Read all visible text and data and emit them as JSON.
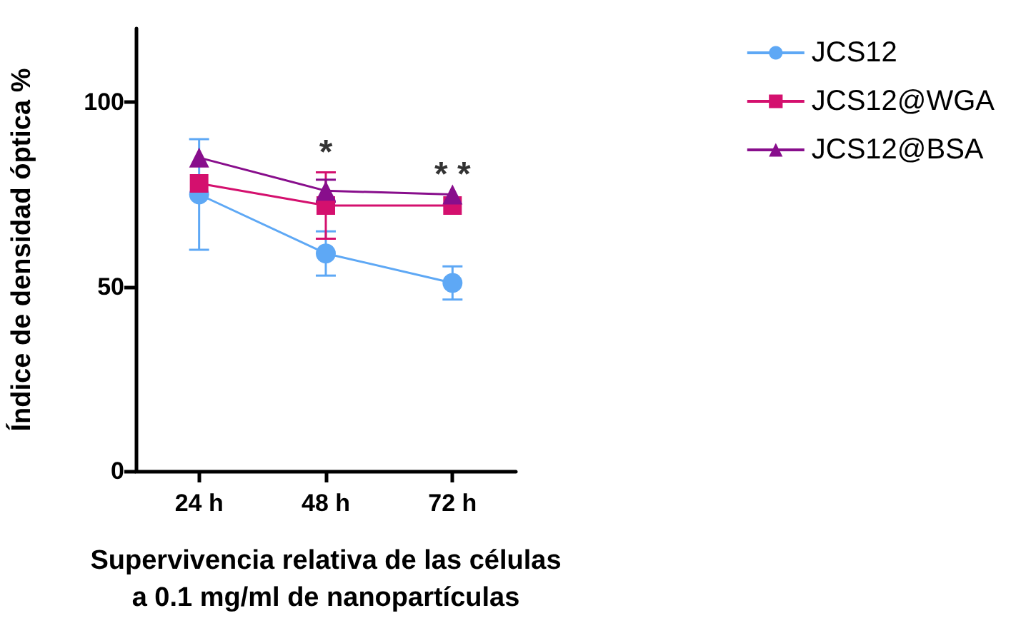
{
  "chart_data": {
    "type": "line",
    "xlabel": "Supervivencia relativa de las células\na 0.1 mg/ml de nanopartículas",
    "ylabel": "Índice de densidad óptica %",
    "categories": [
      "24 h",
      "48 h",
      "72 h"
    ],
    "series": [
      {
        "name": "JCS12",
        "color": "#5ea8f5",
        "marker": "circle",
        "values": [
          75,
          59,
          51
        ],
        "errors": [
          15,
          6,
          4.5
        ]
      },
      {
        "name": "JCS12@WGA",
        "color": "#d4106e",
        "marker": "square",
        "values": [
          78,
          72,
          72
        ],
        "errors": [
          null,
          9,
          null
        ]
      },
      {
        "name": "JCS12@BSA",
        "color": "#880e8c",
        "marker": "triangle",
        "values": [
          85,
          76,
          75
        ],
        "errors": [
          null,
          3,
          null
        ]
      }
    ],
    "ylim": [
      0,
      120
    ],
    "yticks": [
      0,
      50,
      100
    ],
    "grid": false,
    "legend": "top right",
    "annotations": [
      "*",
      "* *"
    ]
  }
}
